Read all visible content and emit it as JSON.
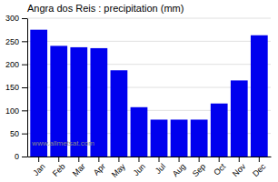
{
  "chart_data": {
    "type": "bar",
    "title": "Angra dos Reis : precipitation (mm)",
    "categories": [
      "Jan",
      "Feb",
      "Mar",
      "Apr",
      "May",
      "Jun",
      "Jul",
      "Aug",
      "Sep",
      "Oct",
      "Nov",
      "Dec"
    ],
    "values": [
      275,
      240,
      237,
      235,
      187,
      107,
      80,
      80,
      80,
      115,
      165,
      263
    ],
    "color": "#0000ee",
    "ylim": [
      0,
      300
    ],
    "yticks": [
      0,
      50,
      100,
      150,
      200,
      250,
      300
    ],
    "grid": true,
    "annotation": "www.allmetsat.com"
  }
}
